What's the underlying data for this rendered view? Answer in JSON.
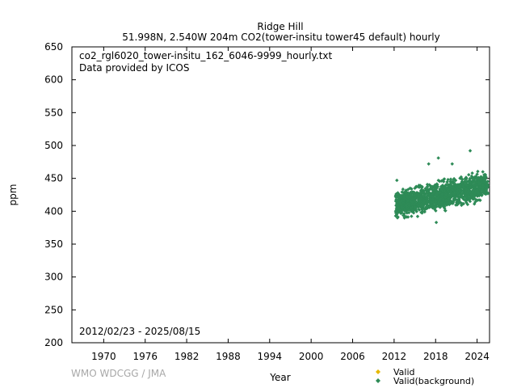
{
  "chart_data": {
    "type": "scatter",
    "title": "Ridge Hill",
    "subtitle": "51.998N, 2.540W 204m    CO2(tower-insitu tower45 default) hourly",
    "file_label": "co2_rgl6020_tower-insitu_162_6046-9999_hourly.txt",
    "provider_label": "Data provided by ICOS",
    "date_range_label": "2012/02/23 - 2025/08/15",
    "xlabel": "Year",
    "ylabel": "ppm",
    "xlim": [
      1965.4,
      2025.8
    ],
    "ylim": [
      200,
      650
    ],
    "x_ticks": [
      1970,
      1976,
      1982,
      1988,
      1994,
      2000,
      2006,
      2012,
      2018,
      2024
    ],
    "y_ticks": [
      200,
      250,
      300,
      350,
      400,
      450,
      500,
      550,
      600,
      650
    ],
    "legend_position": "bottom-right",
    "series": [
      {
        "name": "Valid",
        "color": "#e6b800",
        "points": []
      },
      {
        "name": "Valid(background)",
        "color": "#2e8b57",
        "envelope": [
          {
            "x": 2012.2,
            "low": 380,
            "high": 440
          },
          {
            "x": 2013.0,
            "low": 382,
            "high": 440
          },
          {
            "x": 2014.0,
            "low": 383,
            "high": 443
          },
          {
            "x": 2015.0,
            "low": 385,
            "high": 445
          },
          {
            "x": 2016.0,
            "low": 388,
            "high": 447
          },
          {
            "x": 2017.0,
            "low": 390,
            "high": 448
          },
          {
            "x": 2018.0,
            "low": 393,
            "high": 450
          },
          {
            "x": 2019.0,
            "low": 396,
            "high": 452
          },
          {
            "x": 2020.0,
            "low": 398,
            "high": 455
          },
          {
            "x": 2021.0,
            "low": 400,
            "high": 458
          },
          {
            "x": 2022.0,
            "low": 403,
            "high": 460
          },
          {
            "x": 2023.0,
            "low": 406,
            "high": 463
          },
          {
            "x": 2024.0,
            "low": 408,
            "high": 468
          },
          {
            "x": 2025.0,
            "low": 411,
            "high": 470
          },
          {
            "x": 2025.6,
            "low": 413,
            "high": 455
          }
        ],
        "outliers": [
          {
            "x": 2018.4,
            "y": 481
          },
          {
            "x": 2023.0,
            "y": 492
          },
          {
            "x": 2017.0,
            "y": 472
          },
          {
            "x": 2020.4,
            "y": 472
          },
          {
            "x": 2012.4,
            "y": 447
          },
          {
            "x": 2018.1,
            "y": 383
          }
        ]
      }
    ]
  },
  "watermark": "WMO WDCGG / JMA"
}
